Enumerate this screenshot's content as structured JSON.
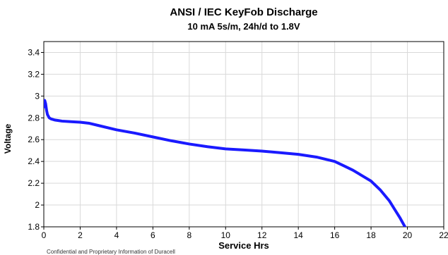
{
  "chart_data": {
    "type": "line",
    "title": "ANSI / IEC KeyFob Discharge",
    "subtitle": "10 mA 5s/m, 24h/d to 1.8V",
    "xlabel": "Service Hrs",
    "ylabel": "Voltage",
    "xlim": [
      0,
      22
    ],
    "ylim": [
      1.8,
      3.5
    ],
    "xticks": [
      "0",
      "2",
      "4",
      "6",
      "8",
      "10",
      "12",
      "14",
      "16",
      "18",
      "20",
      "22"
    ],
    "yticks": [
      "1.8",
      "2",
      "2.2",
      "2.4",
      "2.6",
      "2.8",
      "3",
      "3.2",
      "3.4"
    ],
    "grid": true,
    "line_color": "#1a1aff",
    "series": [
      {
        "name": "",
        "x": [
          0,
          0.05,
          0.1,
          0.15,
          0.2,
          0.3,
          0.4,
          0.6,
          0.8,
          1,
          1.5,
          2,
          2.5,
          3,
          4,
          5,
          6,
          7,
          8,
          9,
          10,
          11,
          12,
          13,
          14,
          15,
          16,
          16.5,
          17,
          17.5,
          18,
          18.5,
          19,
          19.3,
          19.6,
          19.8,
          19.9
        ],
        "y": [
          2.9,
          2.96,
          2.93,
          2.87,
          2.83,
          2.8,
          2.79,
          2.78,
          2.775,
          2.77,
          2.765,
          2.76,
          2.75,
          2.73,
          2.69,
          2.66,
          2.625,
          2.59,
          2.56,
          2.535,
          2.515,
          2.505,
          2.495,
          2.48,
          2.465,
          2.44,
          2.4,
          2.36,
          2.32,
          2.27,
          2.22,
          2.14,
          2.04,
          1.96,
          1.88,
          1.82,
          1.79
        ]
      }
    ]
  },
  "footer_text": "Confidential and Proprietary Information of Duracell"
}
